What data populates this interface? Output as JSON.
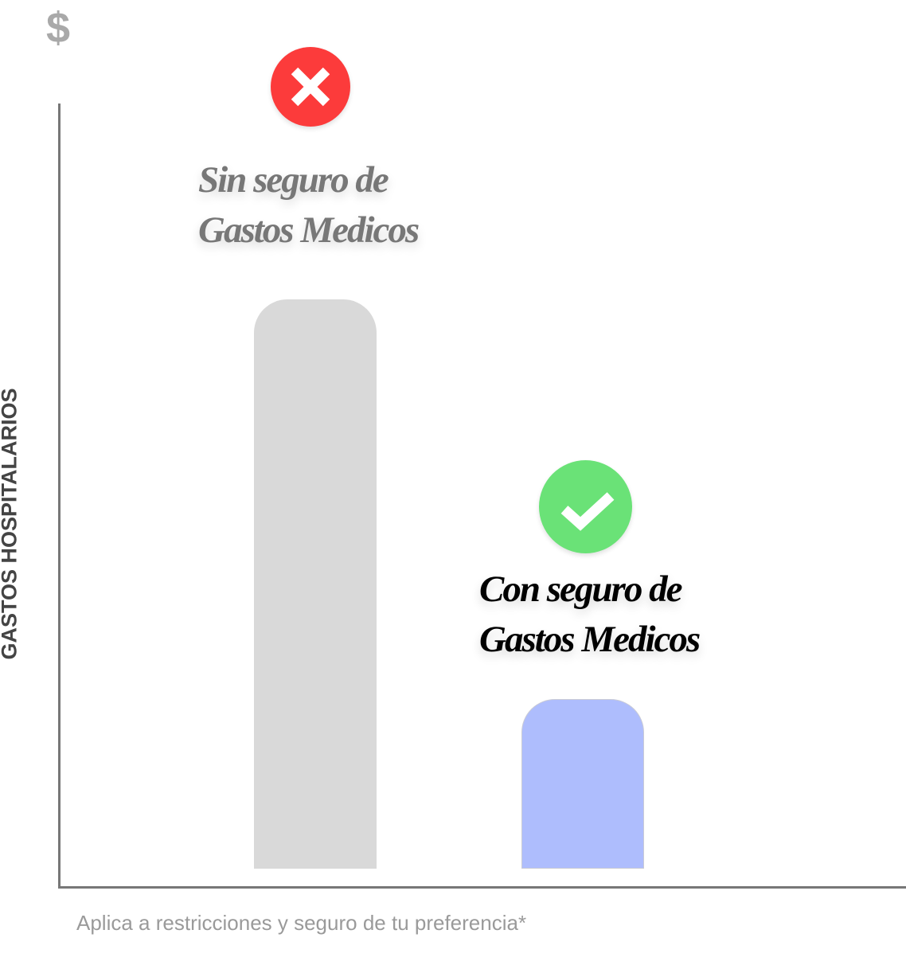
{
  "chart_data": {
    "type": "bar",
    "title": "",
    "ylabel": "GASTOS HOSPITALARIOS",
    "yunit_symbol": "$",
    "xlabel": "",
    "ylim": [
      0,
      100
    ],
    "categories": [
      "Sin seguro de Gastos Medicos",
      "Con seguro de Gastos Medicos"
    ],
    "values": [
      75,
      24
    ],
    "category_lines": [
      [
        "Sin seguro de",
        "Gastos Medicos"
      ],
      [
        "Con seguro de",
        "Gastos Medicos"
      ]
    ],
    "bar_colors": [
      "#d9d9d9",
      "#aebdfd"
    ],
    "label_colors": [
      "#777777",
      "#000000"
    ],
    "icons": [
      "x-circle-icon",
      "check-circle-icon"
    ],
    "icon_colors": [
      "#fc3b3b",
      "#6ae277"
    ],
    "grid": false,
    "footnote": "Aplica a restricciones y seguro de tu preferencia*"
  }
}
